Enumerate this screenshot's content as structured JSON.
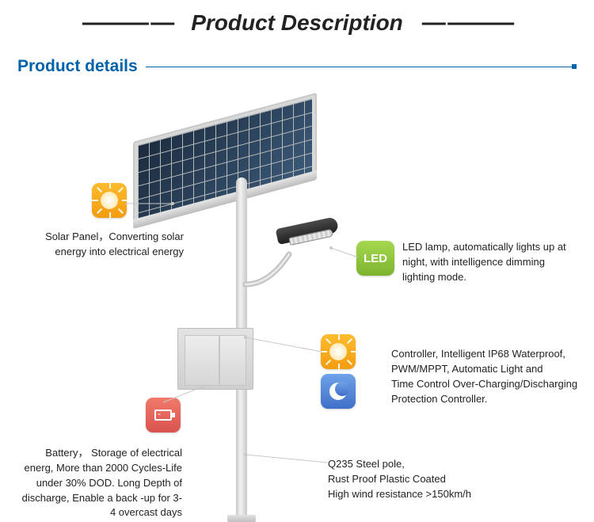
{
  "header": {
    "main_title": "Product Description",
    "details_title": "Product details",
    "dash": "——— —",
    "dash_end": "— ———"
  },
  "icons": {
    "sun_yellow": {
      "color": "#f7a823",
      "type": "sun"
    },
    "led_green": {
      "color": "#8cc63f",
      "label": "LED"
    },
    "sun_orange": {
      "color": "#f7a823",
      "type": "sun"
    },
    "moon_blue": {
      "color": "#4c7bd9",
      "type": "moon"
    },
    "battery_red": {
      "color": "#e05a4b",
      "type": "battery"
    }
  },
  "callouts": {
    "solar": "Solar Panel，Converting solar energy into electrical energy",
    "led": "LED lamp, automatically lights up at night, with intelligence dimming lighting mode.",
    "controller": "Controller, Intelligent IP68 Waterproof, PWM/MPPT, Automatic Light and\nTime Control Over-Charging/Discharging Protection Controller.",
    "battery": "Battery， Storage of electrical energ, More than 2000 Cycles-Life under 30% DOD. Long Depth of discharge, Enable a back -up for 3-4 overcast days",
    "pole": "Q235 Steel pole,\nRust Proof Plastic Coated\nHigh wind resistance >150km/h"
  },
  "styling": {
    "accent_blue": "#0062a9",
    "line_color": "#c8c8c8",
    "text_color": "#222222",
    "background": "#ffffff",
    "callout_fontsize": 13,
    "title_fontsize": 28
  }
}
